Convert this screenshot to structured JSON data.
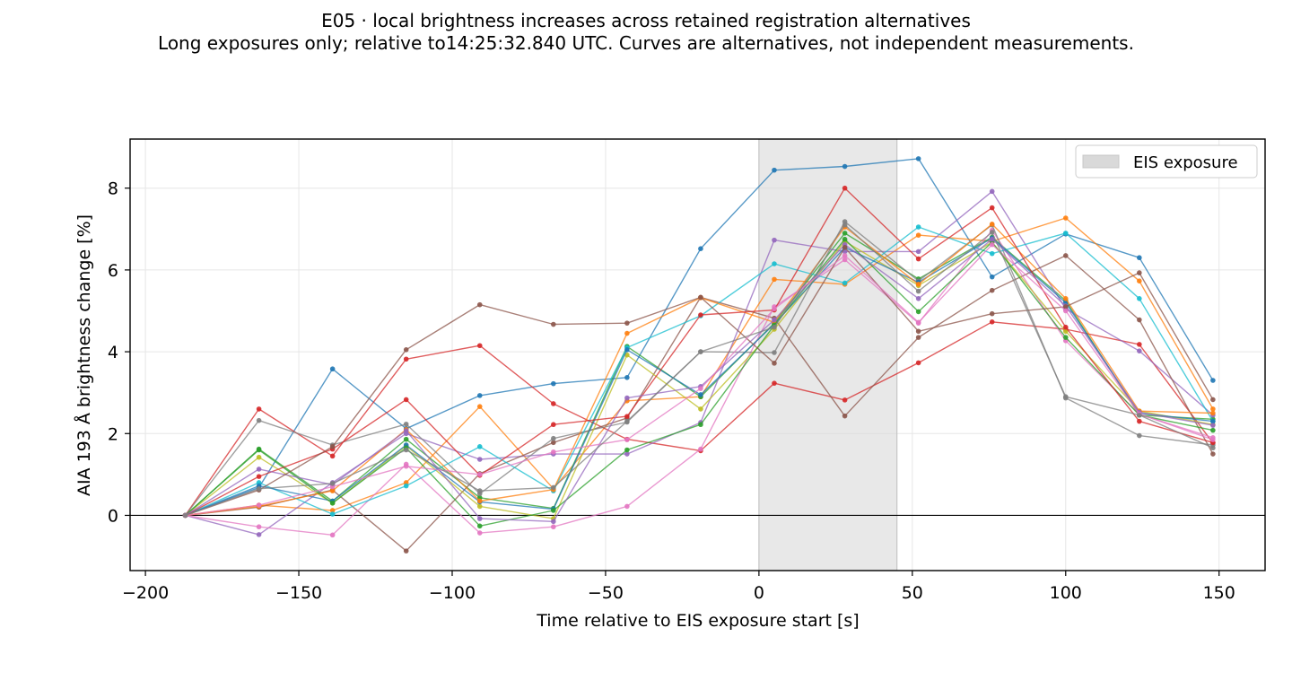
{
  "chart_data": {
    "type": "line",
    "title": "E05 · local brightness increases across retained registration alternatives",
    "subtitle": "Long exposures only; relative to14:25:32.840 UTC. Curves are alternatives, not independent measurements.",
    "xlabel": "Time relative to EIS exposure start [s]",
    "ylabel": "AIA 193 Å brightness change [%]",
    "xlim": [
      -205,
      165
    ],
    "ylim": [
      -1.35,
      9.2
    ],
    "xticks": [
      -200,
      -150,
      -100,
      -50,
      0,
      50,
      100,
      150
    ],
    "xtick_labels": [
      "−200",
      "−150",
      "−100",
      "−50",
      "0",
      "50",
      "100",
      "150"
    ],
    "yticks": [
      0,
      2,
      4,
      6,
      8
    ],
    "ytick_labels": [
      "0",
      "2",
      "4",
      "6",
      "8"
    ],
    "grid": true,
    "zero_line": 0,
    "legend_position": "top-right",
    "shaded_region": {
      "label": "EIS exposure",
      "x_start": 0,
      "x_end": 45,
      "color": "#d9d9d9"
    },
    "x": [
      -187,
      -163,
      -139,
      -115,
      -91,
      -67,
      -43,
      -19,
      5,
      28,
      52,
      76,
      100,
      124,
      148
    ],
    "series": [
      {
        "color": "#1f77b4",
        "values": [
          0,
          0.68,
          3.58,
          2.12,
          2.93,
          3.22,
          3.37,
          6.52,
          8.44,
          8.53,
          8.72,
          5.83,
          6.88,
          6.3,
          3.3
        ]
      },
      {
        "color": "#ff7f0e",
        "values": [
          0,
          0.25,
          0.12,
          0.8,
          2.66,
          0.65,
          2.8,
          2.9,
          5.77,
          5.65,
          6.85,
          6.7,
          7.27,
          5.73,
          2.6
        ]
      },
      {
        "color": "#2ca02c",
        "values": [
          0,
          1.62,
          0.35,
          1.86,
          0.43,
          0.17,
          4.13,
          2.9,
          4.7,
          6.9,
          5.78,
          6.8,
          5.25,
          2.45,
          2.35
        ]
      },
      {
        "color": "#d62728",
        "values": [
          0,
          2.6,
          1.45,
          3.82,
          4.15,
          2.73,
          1.86,
          1.58,
          3.23,
          2.82,
          3.73,
          4.73,
          4.55,
          4.18,
          1.77
        ]
      },
      {
        "color": "#9467bd",
        "values": [
          0,
          -0.47,
          0.8,
          2.0,
          1.37,
          1.5,
          1.5,
          2.27,
          6.73,
          6.45,
          6.45,
          7.92,
          5.05,
          4.02,
          2.45
        ]
      },
      {
        "color": "#8c564b",
        "values": [
          0,
          0.2,
          0.62,
          -0.87,
          1.02,
          1.78,
          2.38,
          5.33,
          4.82,
          2.43,
          4.35,
          5.5,
          6.35,
          4.78,
          1.5
        ]
      },
      {
        "color": "#e377c2",
        "values": [
          0,
          -0.28,
          -0.48,
          1.25,
          -0.43,
          -0.28,
          0.22,
          1.62,
          5.1,
          6.25,
          4.7,
          6.97,
          4.27,
          2.47,
          1.9
        ]
      },
      {
        "color": "#7f7f7f",
        "values": [
          0,
          2.32,
          1.72,
          2.23,
          0.53,
          1.88,
          2.28,
          4.0,
          3.98,
          7.18,
          5.73,
          7.1,
          2.87,
          1.95,
          1.72
        ]
      },
      {
        "color": "#bcbd22",
        "values": [
          0,
          1.42,
          0.3,
          1.7,
          0.22,
          -0.08,
          3.92,
          2.6,
          4.55,
          6.7,
          5.62,
          6.68,
          4.5,
          2.55,
          2.22
        ]
      },
      {
        "color": "#17becf",
        "values": [
          0,
          0.8,
          0.03,
          0.72,
          1.68,
          0.6,
          4.1,
          4.88,
          6.15,
          5.68,
          7.05,
          6.4,
          6.9,
          5.3,
          2.3
        ]
      },
      {
        "color": "#1f77b4",
        "values": [
          0,
          0.72,
          0.35,
          1.72,
          0.33,
          0.15,
          4.05,
          2.95,
          4.68,
          6.55,
          5.7,
          6.78,
          5.2,
          2.5,
          2.3
        ]
      },
      {
        "color": "#ff7f0e",
        "values": [
          0,
          0.22,
          0.6,
          2.1,
          0.35,
          0.63,
          4.45,
          5.32,
          4.72,
          7.05,
          5.65,
          7.12,
          5.3,
          2.55,
          2.5
        ]
      },
      {
        "color": "#2ca02c",
        "values": [
          0,
          1.6,
          0.3,
          1.65,
          -0.26,
          0.12,
          1.6,
          2.22,
          4.65,
          6.75,
          4.98,
          6.68,
          4.35,
          2.45,
          2.08
        ]
      },
      {
        "color": "#d62728",
        "values": [
          0,
          0.95,
          1.62,
          2.83,
          0.98,
          2.22,
          2.42,
          4.9,
          5.02,
          8.0,
          6.27,
          7.52,
          4.6,
          2.3,
          1.78
        ]
      },
      {
        "color": "#9467bd",
        "values": [
          0,
          1.13,
          0.75,
          2.07,
          -0.08,
          -0.15,
          2.87,
          3.15,
          4.78,
          6.62,
          5.3,
          6.75,
          5.12,
          2.52,
          2.2
        ]
      },
      {
        "color": "#8c564b",
        "values": [
          0,
          0.62,
          1.68,
          4.05,
          5.15,
          4.67,
          4.7,
          5.33,
          3.72,
          6.55,
          4.5,
          4.93,
          5.1,
          5.93,
          2.83
        ]
      },
      {
        "color": "#e377c2",
        "values": [
          0,
          0.25,
          0.7,
          1.2,
          1.0,
          1.55,
          1.85,
          3.1,
          5.05,
          6.35,
          4.72,
          6.62,
          5.0,
          2.48,
          1.85
        ]
      },
      {
        "color": "#7f7f7f",
        "values": [
          0,
          0.65,
          0.78,
          1.6,
          0.6,
          0.68,
          2.3,
          4.0,
          4.6,
          7.1,
          5.48,
          6.92,
          2.9,
          2.45,
          1.65
        ]
      }
    ]
  }
}
